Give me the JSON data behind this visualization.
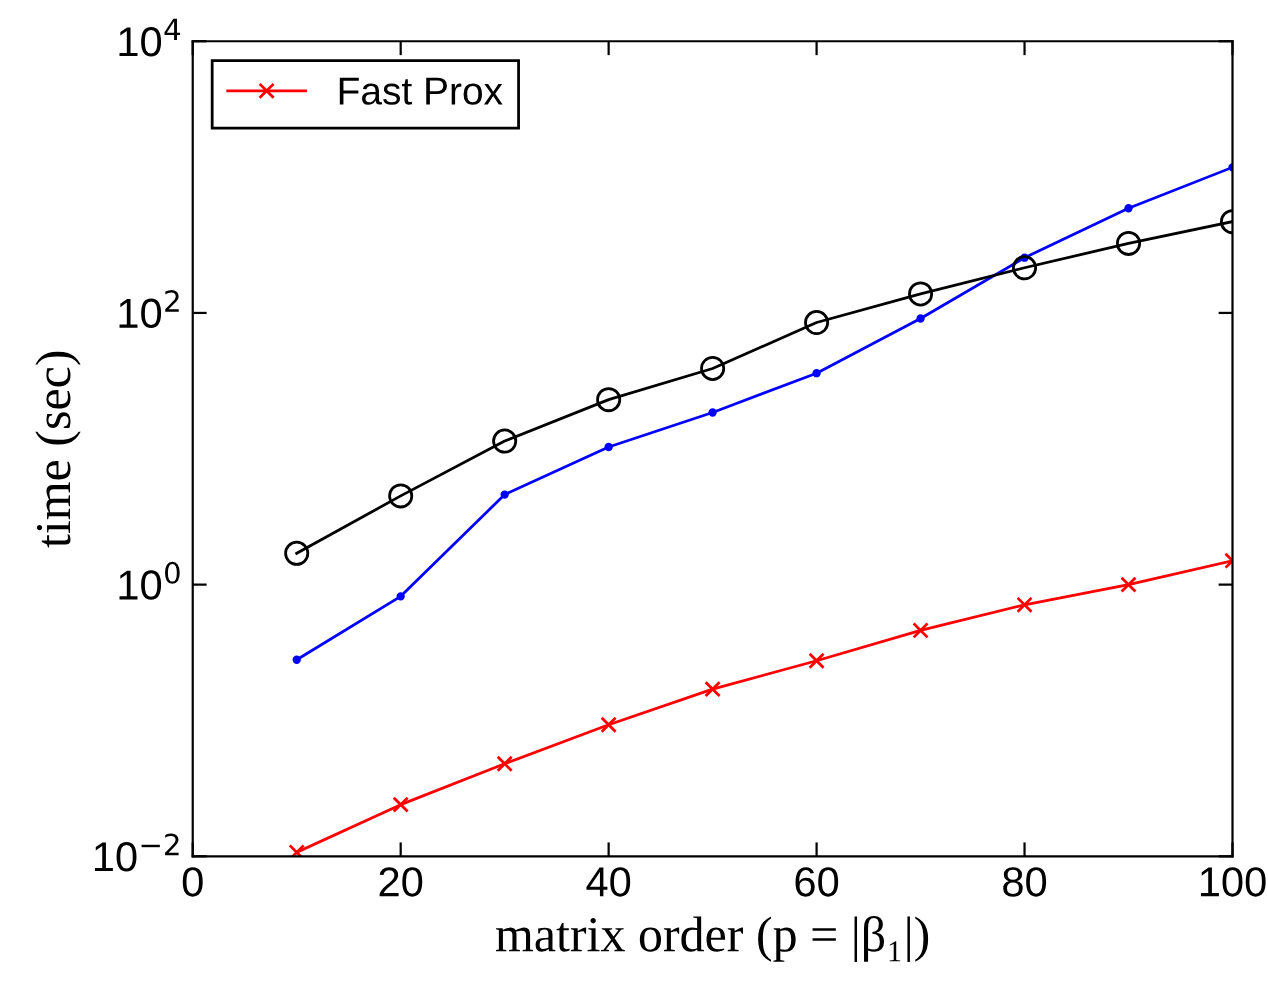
{
  "chart_data": {
    "type": "line",
    "xlabel": "matrix order (p = |β₁|)",
    "ylabel": "time (sec)",
    "x": [
      10,
      20,
      30,
      40,
      50,
      60,
      70,
      80,
      90,
      100
    ],
    "series": [
      {
        "color": "#0000ff",
        "marker": "point",
        "values": [
          0.28,
          0.82,
          4.6,
          10.3,
          18.5,
          36,
          91,
          255,
          590,
          1180
        ]
      },
      {
        "color": "#000000",
        "marker": "circle",
        "values": [
          1.7,
          4.5,
          11.4,
          23,
          39,
          85,
          138,
          215,
          325,
          470
        ]
      },
      {
        "name": "Fast Prox",
        "color": "#ff0000",
        "marker": "cross",
        "values": [
          0.0107,
          0.024,
          0.048,
          0.093,
          0.17,
          0.275,
          0.46,
          0.71,
          1.0,
          1.5
        ]
      }
    ],
    "log": "y",
    "xlim": [
      0,
      100
    ],
    "xticks": [
      0,
      20,
      40,
      60,
      80,
      100
    ],
    "ylim": [
      0.01,
      10000
    ],
    "yticks": [
      {
        "value": 0.01,
        "label": "10$^{−2}$"
      },
      {
        "value": 1,
        "label": "10$^{0}$"
      },
      {
        "value": 100,
        "label": "10$^{2}$"
      },
      {
        "value": 10000,
        "label": "10$^{4}$"
      }
    ],
    "grid": false,
    "legend": "top left",
    "line_style": "solid"
  }
}
